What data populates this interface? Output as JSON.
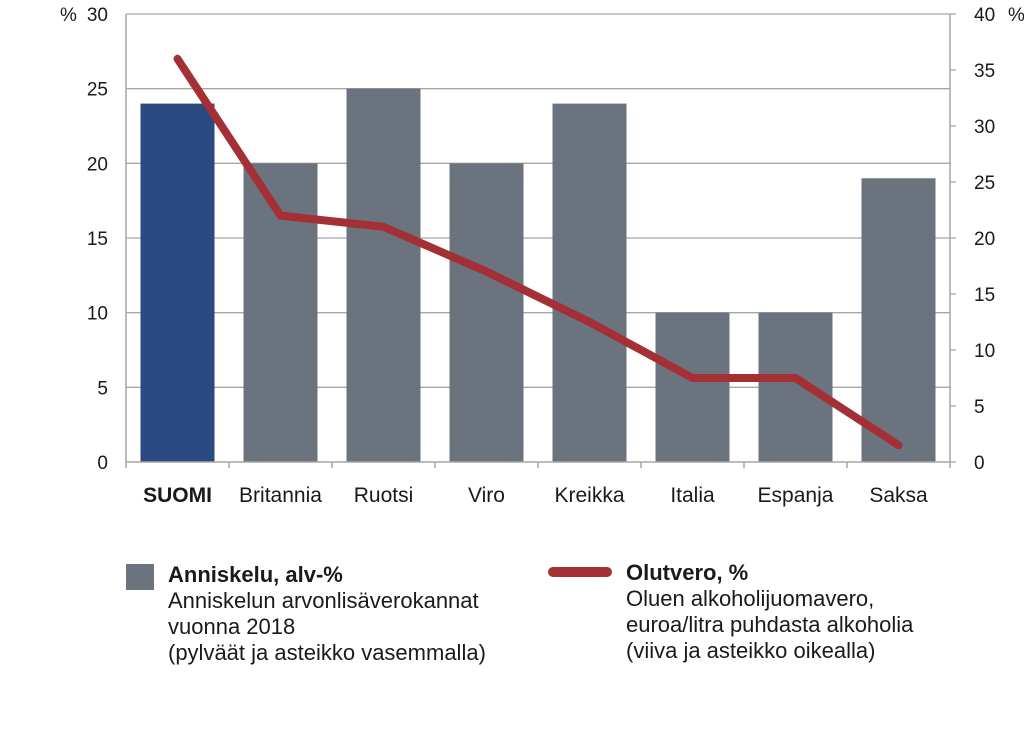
{
  "chart_data": {
    "type": "bar",
    "categories": [
      "SUOMI",
      "Britannia",
      "Ruotsi",
      "Viro",
      "Kreikka",
      "Italia",
      "Espanja",
      "Saksa"
    ],
    "series": [
      {
        "name": "Anniskelu, alv-%",
        "type": "bar",
        "axis": "left",
        "values": [
          24,
          20,
          25,
          20,
          24,
          10,
          10,
          19
        ]
      },
      {
        "name": "Olutvero, %",
        "type": "line",
        "axis": "right",
        "values": [
          36,
          22,
          21,
          17,
          12.5,
          7.5,
          7.5,
          1.5
        ]
      }
    ],
    "y_left": {
      "unit": "%",
      "range": [
        0,
        30
      ],
      "ticks": [
        0,
        5,
        10,
        15,
        20,
        25,
        30
      ]
    },
    "y_right": {
      "unit": "%",
      "range": [
        0,
        40
      ],
      "ticks": [
        0,
        5,
        10,
        15,
        20,
        25,
        30,
        35,
        40
      ]
    },
    "grid": true,
    "legend_position": "bottom",
    "highlight_category": "SUOMI",
    "colors": {
      "highlight": "#2b4a82",
      "bars": "#6b737e",
      "line": "#a42f35",
      "grid": "#a6a6a6"
    }
  },
  "legend": {
    "bar": {
      "title": "Anniskelu, alv-%",
      "lines": [
        "Anniskelun arvonlisäverokannat",
        "vuonna 2018",
        "(pylväät ja asteikko vasemmalla)"
      ]
    },
    "line": {
      "title": "Olutvero, %",
      "lines": [
        "Oluen alkoholijuomavero,",
        "euroa/litra puhdasta alkoholia",
        "(viiva ja asteikko oikealla)"
      ]
    }
  }
}
